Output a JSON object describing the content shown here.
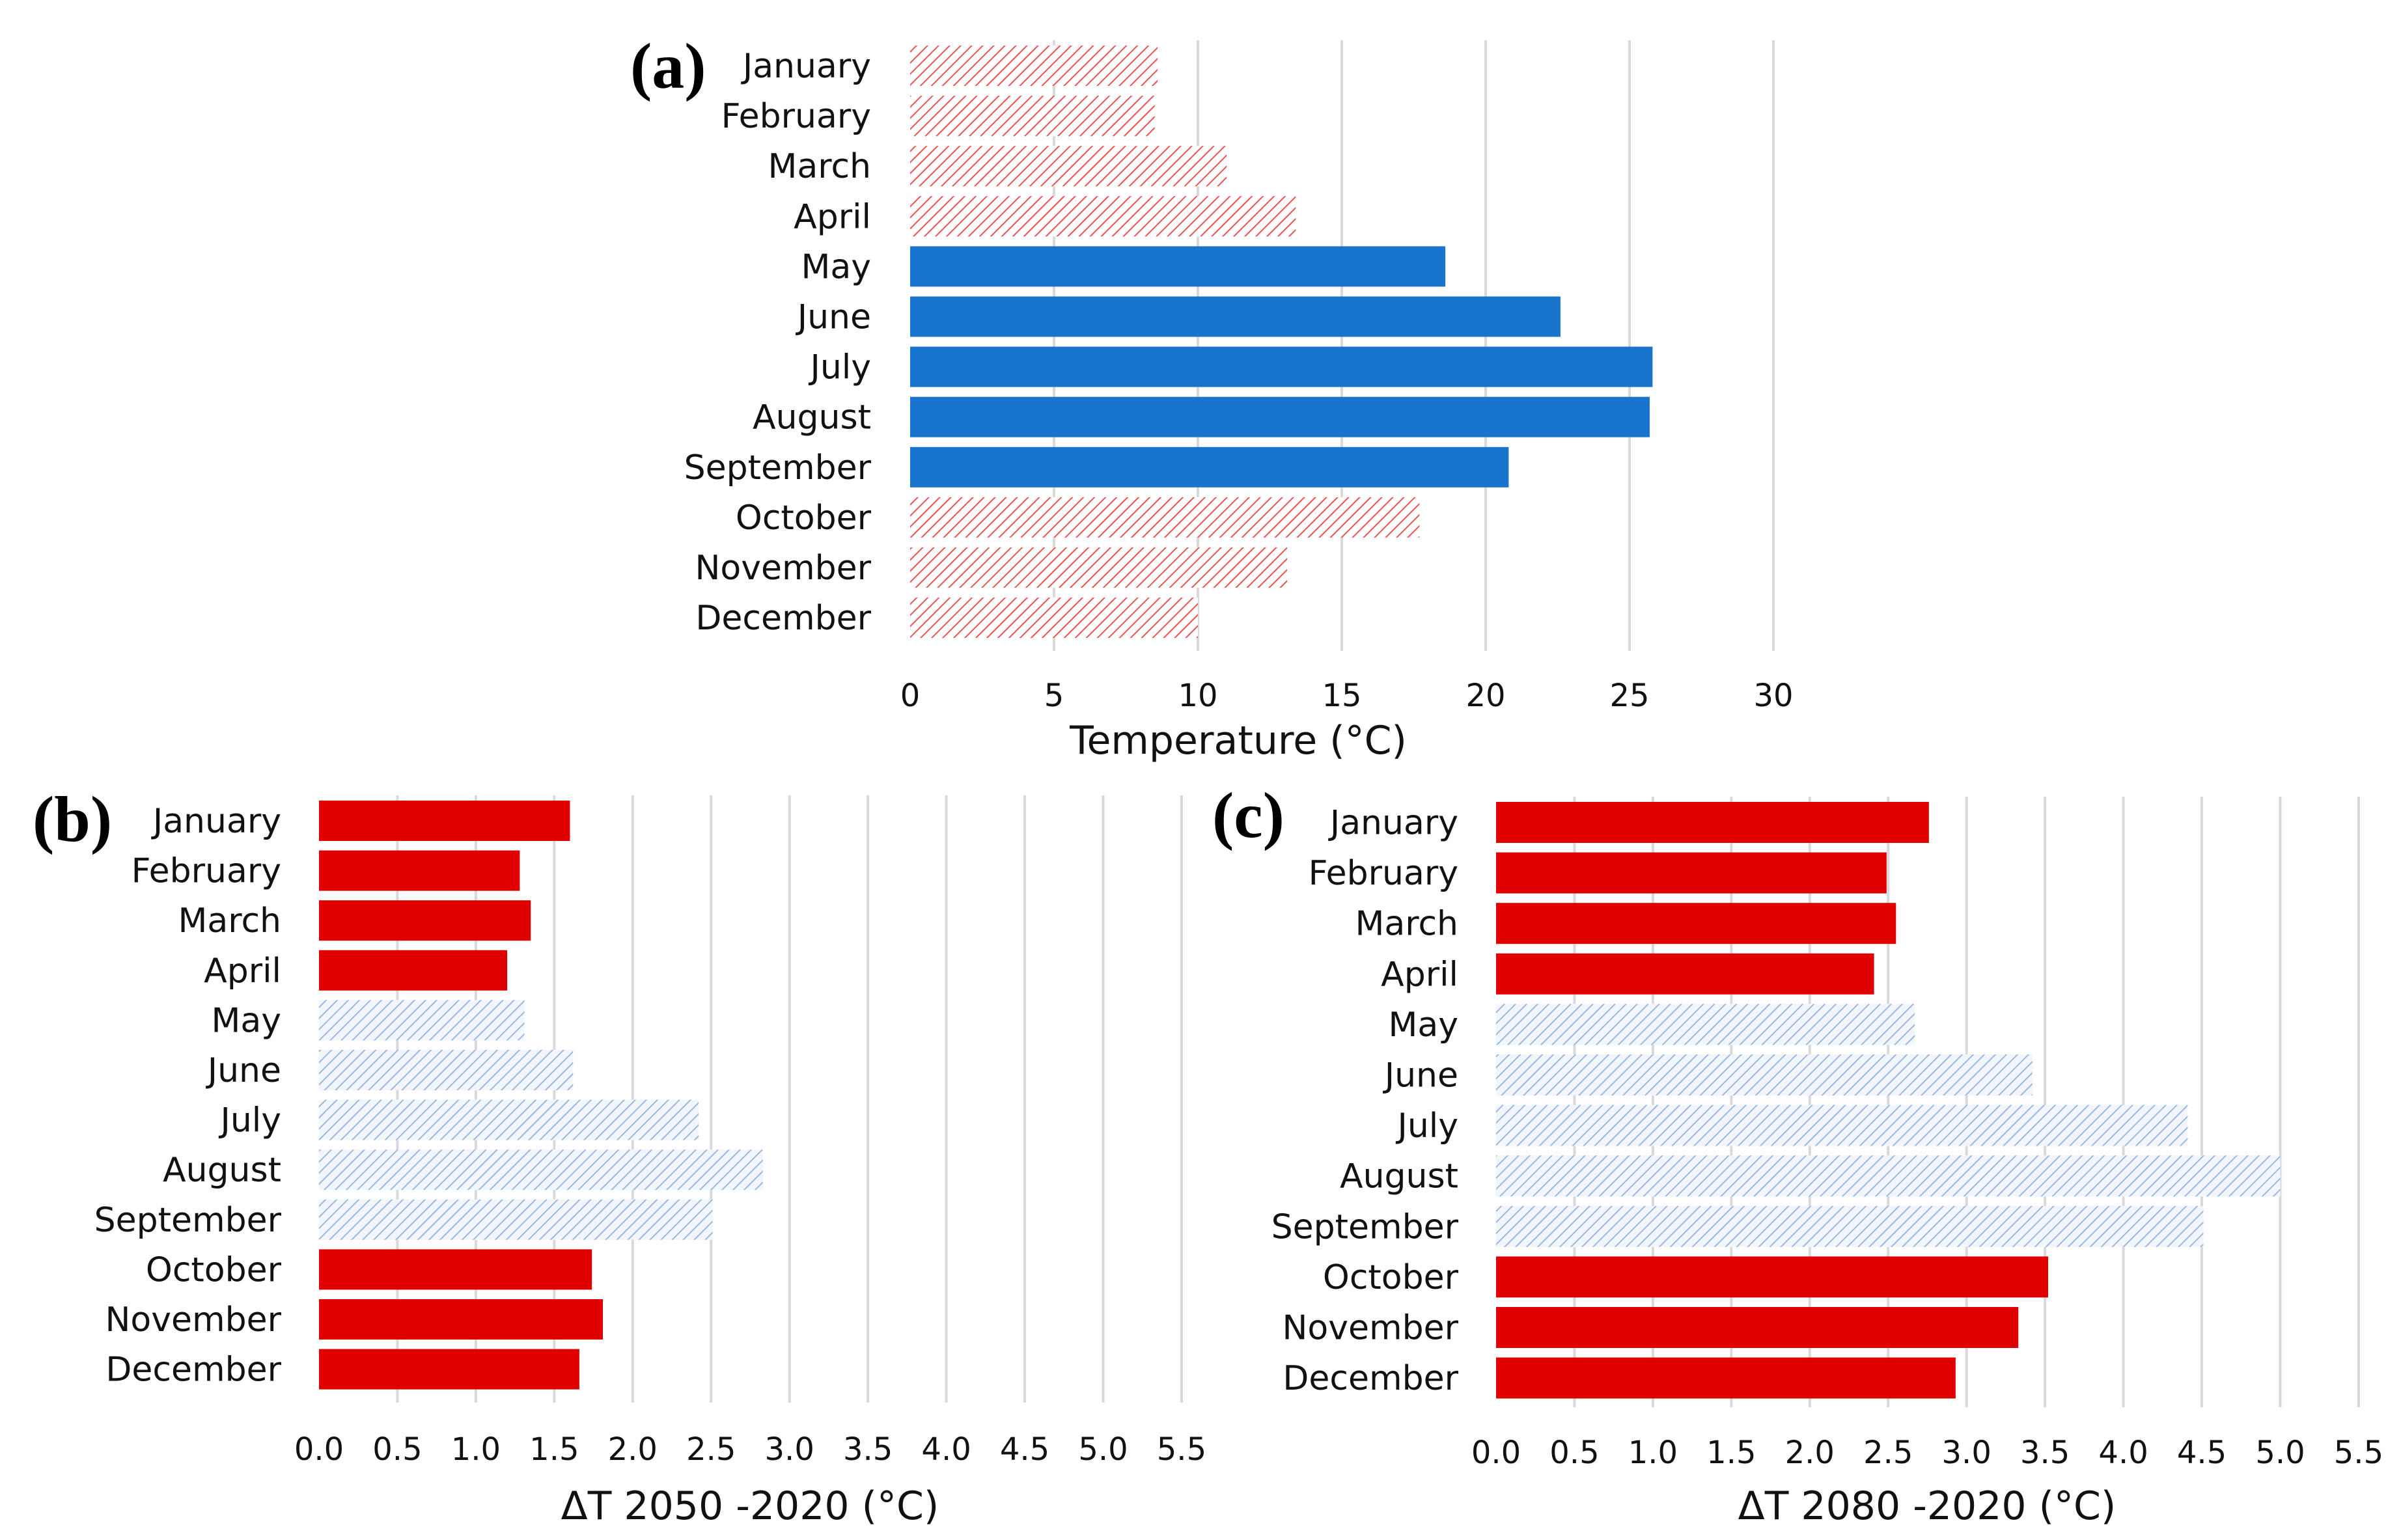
{
  "figure": {
    "months": [
      "January",
      "February",
      "March",
      "April",
      "May",
      "June",
      "July",
      "August",
      "September",
      "October",
      "November",
      "December"
    ]
  },
  "chart_data": [
    {
      "id": "a",
      "panel_label": "(a)",
      "type": "bar",
      "orientation": "horizontal",
      "categories": [
        "January",
        "February",
        "March",
        "April",
        "May",
        "June",
        "July",
        "August",
        "September",
        "October",
        "November",
        "December"
      ],
      "values": [
        8.6,
        8.5,
        11.0,
        13.4,
        18.6,
        22.6,
        25.8,
        25.7,
        20.8,
        17.7,
        13.1,
        10.0
      ],
      "styles": [
        "hatch-red",
        "hatch-red",
        "hatch-red",
        "hatch-red",
        "solid-blue",
        "solid-blue",
        "solid-blue",
        "solid-blue",
        "solid-blue",
        "hatch-red",
        "hatch-red",
        "hatch-red"
      ],
      "xlabel": "Temperature (°C)",
      "xlim": [
        0,
        30
      ],
      "xticks": [
        0,
        5,
        10,
        15,
        20,
        25,
        30
      ],
      "xtick_labels": [
        "0",
        "5",
        "10",
        "15",
        "20",
        "25",
        "30"
      ],
      "grid": true,
      "legend": "none"
    },
    {
      "id": "b",
      "panel_label": "(b)",
      "type": "bar",
      "orientation": "horizontal",
      "categories": [
        "January",
        "February",
        "March",
        "April",
        "May",
        "June",
        "July",
        "August",
        "September",
        "October",
        "November",
        "December"
      ],
      "values": [
        1.6,
        1.28,
        1.35,
        1.2,
        1.31,
        1.62,
        2.42,
        2.83,
        2.51,
        1.74,
        1.81,
        1.66
      ],
      "styles": [
        "solid-red",
        "solid-red",
        "solid-red",
        "solid-red",
        "hatch-blue",
        "hatch-blue",
        "hatch-blue",
        "hatch-blue",
        "hatch-blue",
        "solid-red",
        "solid-red",
        "solid-red"
      ],
      "xlabel": "ΔT 2050 -2020 (°C)",
      "xlim": [
        0,
        5.5
      ],
      "xticks": [
        0,
        0.5,
        1,
        1.5,
        2,
        2.5,
        3,
        3.5,
        4,
        4.5,
        5,
        5.5
      ],
      "xtick_labels": [
        "0.0",
        "0.5",
        "1.0",
        "1.5",
        "2.0",
        "2.5",
        "3.0",
        "3.5",
        "4.0",
        "4.5",
        "5.0",
        "5.5"
      ],
      "grid": true,
      "legend": "none"
    },
    {
      "id": "c",
      "panel_label": "(c)",
      "type": "bar",
      "orientation": "horizontal",
      "categories": [
        "January",
        "February",
        "March",
        "April",
        "May",
        "June",
        "July",
        "August",
        "September",
        "October",
        "November",
        "December"
      ],
      "values": [
        2.76,
        2.49,
        2.55,
        2.41,
        2.67,
        3.42,
        4.41,
        5.0,
        4.51,
        3.52,
        3.33,
        2.93
      ],
      "styles": [
        "solid-red",
        "solid-red",
        "solid-red",
        "solid-red",
        "hatch-blue",
        "hatch-blue",
        "hatch-blue",
        "hatch-blue",
        "hatch-blue",
        "solid-red",
        "solid-red",
        "solid-red"
      ],
      "xlabel": "ΔT 2080 -2020 (°C)",
      "xlim": [
        0,
        5.5
      ],
      "xticks": [
        0,
        0.5,
        1,
        1.5,
        2,
        2.5,
        3,
        3.5,
        4,
        4.5,
        5,
        5.5
      ],
      "xtick_labels": [
        "0.0",
        "0.5",
        "1.0",
        "1.5",
        "2.0",
        "2.5",
        "3.0",
        "3.5",
        "4.0",
        "4.5",
        "5.0",
        "5.5"
      ],
      "grid": true,
      "legend": "none"
    }
  ],
  "colors": {
    "solid_blue": "#1874cd",
    "solid_red": "#e00000",
    "hatch_red_line": "#f05050",
    "hatch_blue_line": "#8fb0e0",
    "hatch_blue_fill": "#f2f6fc",
    "grid": "#d9d9d9"
  }
}
